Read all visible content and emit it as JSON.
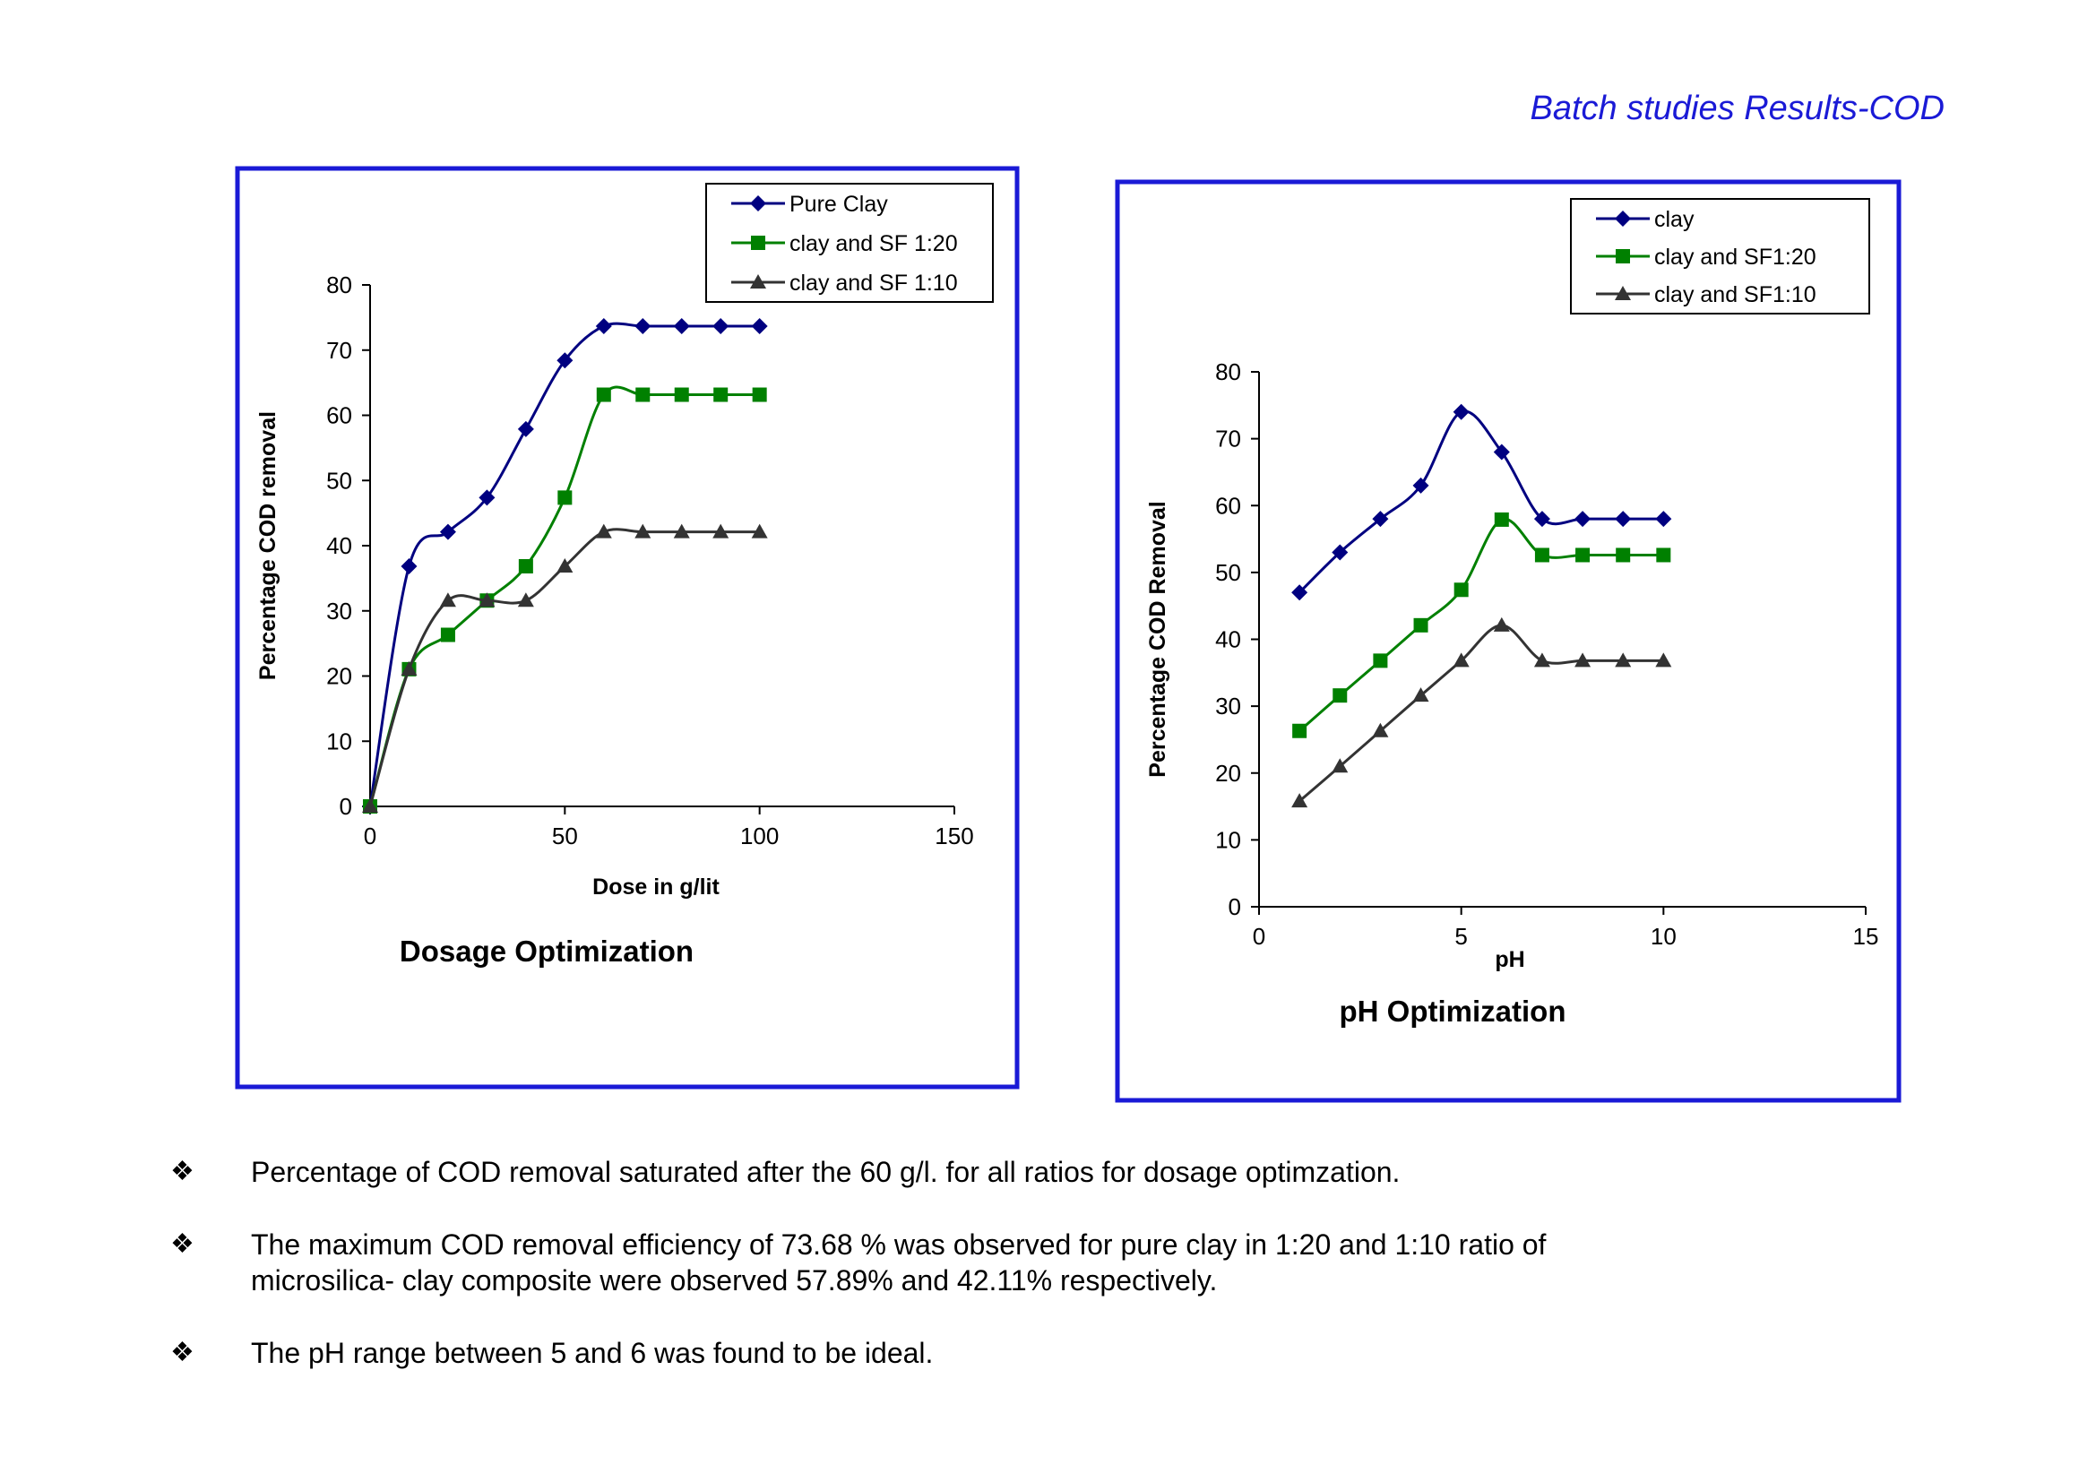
{
  "page_title": "Batch studies Results-COD",
  "chart_data": [
    {
      "type": "line",
      "title": "Dosage Optimization",
      "xlabel": "Dose in g/lit",
      "ylabel": "Percentage COD removal",
      "xlim": [
        0,
        150
      ],
      "ylim": [
        0,
        80
      ],
      "xticks": [
        0,
        50,
        100,
        150
      ],
      "yticks": [
        0,
        10,
        20,
        30,
        40,
        50,
        60,
        70,
        80
      ],
      "grid": false,
      "legend_position": "top-right",
      "x": [
        0,
        10,
        20,
        30,
        40,
        50,
        60,
        70,
        80,
        90,
        100
      ],
      "series": [
        {
          "name": "Pure Clay",
          "marker": "diamond",
          "color": "#000080",
          "values": [
            0,
            36.84,
            42.11,
            47.37,
            57.89,
            68.42,
            73.68,
            73.68,
            73.68,
            73.68,
            73.68
          ]
        },
        {
          "name": "clay and SF 1:20",
          "marker": "square",
          "color": "#008000",
          "values": [
            0,
            21.05,
            26.32,
            31.58,
            36.84,
            47.37,
            63.16,
            63.16,
            63.16,
            63.16,
            63.16
          ]
        },
        {
          "name": "clay and SF 1:10",
          "marker": "triangle",
          "color": "#333333",
          "values": [
            0,
            21.05,
            31.58,
            31.58,
            31.58,
            36.84,
            42.11,
            42.11,
            42.11,
            42.11,
            42.11
          ]
        }
      ]
    },
    {
      "type": "line",
      "title": "pH Optimization",
      "xlabel": "pH",
      "ylabel": "Percentage COD Removal",
      "xlim": [
        0,
        15
      ],
      "ylim": [
        0,
        80
      ],
      "xticks": [
        0,
        5,
        10,
        15
      ],
      "yticks": [
        0,
        10,
        20,
        30,
        40,
        50,
        60,
        70,
        80
      ],
      "grid": false,
      "legend_position": "top-right",
      "x": [
        1,
        2,
        3,
        4,
        5,
        6,
        7,
        8,
        9,
        10
      ],
      "series": [
        {
          "name": "clay",
          "marker": "diamond",
          "color": "#000080",
          "values": [
            47.0,
            53.0,
            58.0,
            63.0,
            74.0,
            68.0,
            58.0,
            58.0,
            58.0,
            58.0
          ]
        },
        {
          "name": "clay and SF1:20",
          "marker": "square",
          "color": "#008000",
          "values": [
            26.3,
            31.6,
            36.8,
            42.1,
            47.4,
            57.9,
            52.6,
            52.6,
            52.6,
            52.6
          ]
        },
        {
          "name": "clay and SF1:10",
          "marker": "triangle",
          "color": "#333333",
          "values": [
            15.8,
            21.0,
            26.3,
            31.6,
            36.8,
            42.1,
            36.8,
            36.8,
            36.8,
            36.8
          ]
        }
      ]
    }
  ],
  "bullets": [
    {
      "icon": "four-diamond-bullet-icon",
      "text": "Percentage of COD removal saturated after the 60 g/l. for all ratios for dosage optimzation."
    },
    {
      "icon": "four-diamond-bullet-icon",
      "text": "The maximum COD removal efficiency of 73.68 % was observed for pure  clay in 1:20 and 1:10 ratio of\n microsilica- clay composite were observed 57.89% and 42.11% respectively."
    },
    {
      "icon": "four-diamond-bullet-icon",
      "text": "The pH range between 5 and 6 was found to be ideal."
    }
  ],
  "colors": {
    "frame": "#1a1ad6",
    "title": "#1a1ad6"
  }
}
